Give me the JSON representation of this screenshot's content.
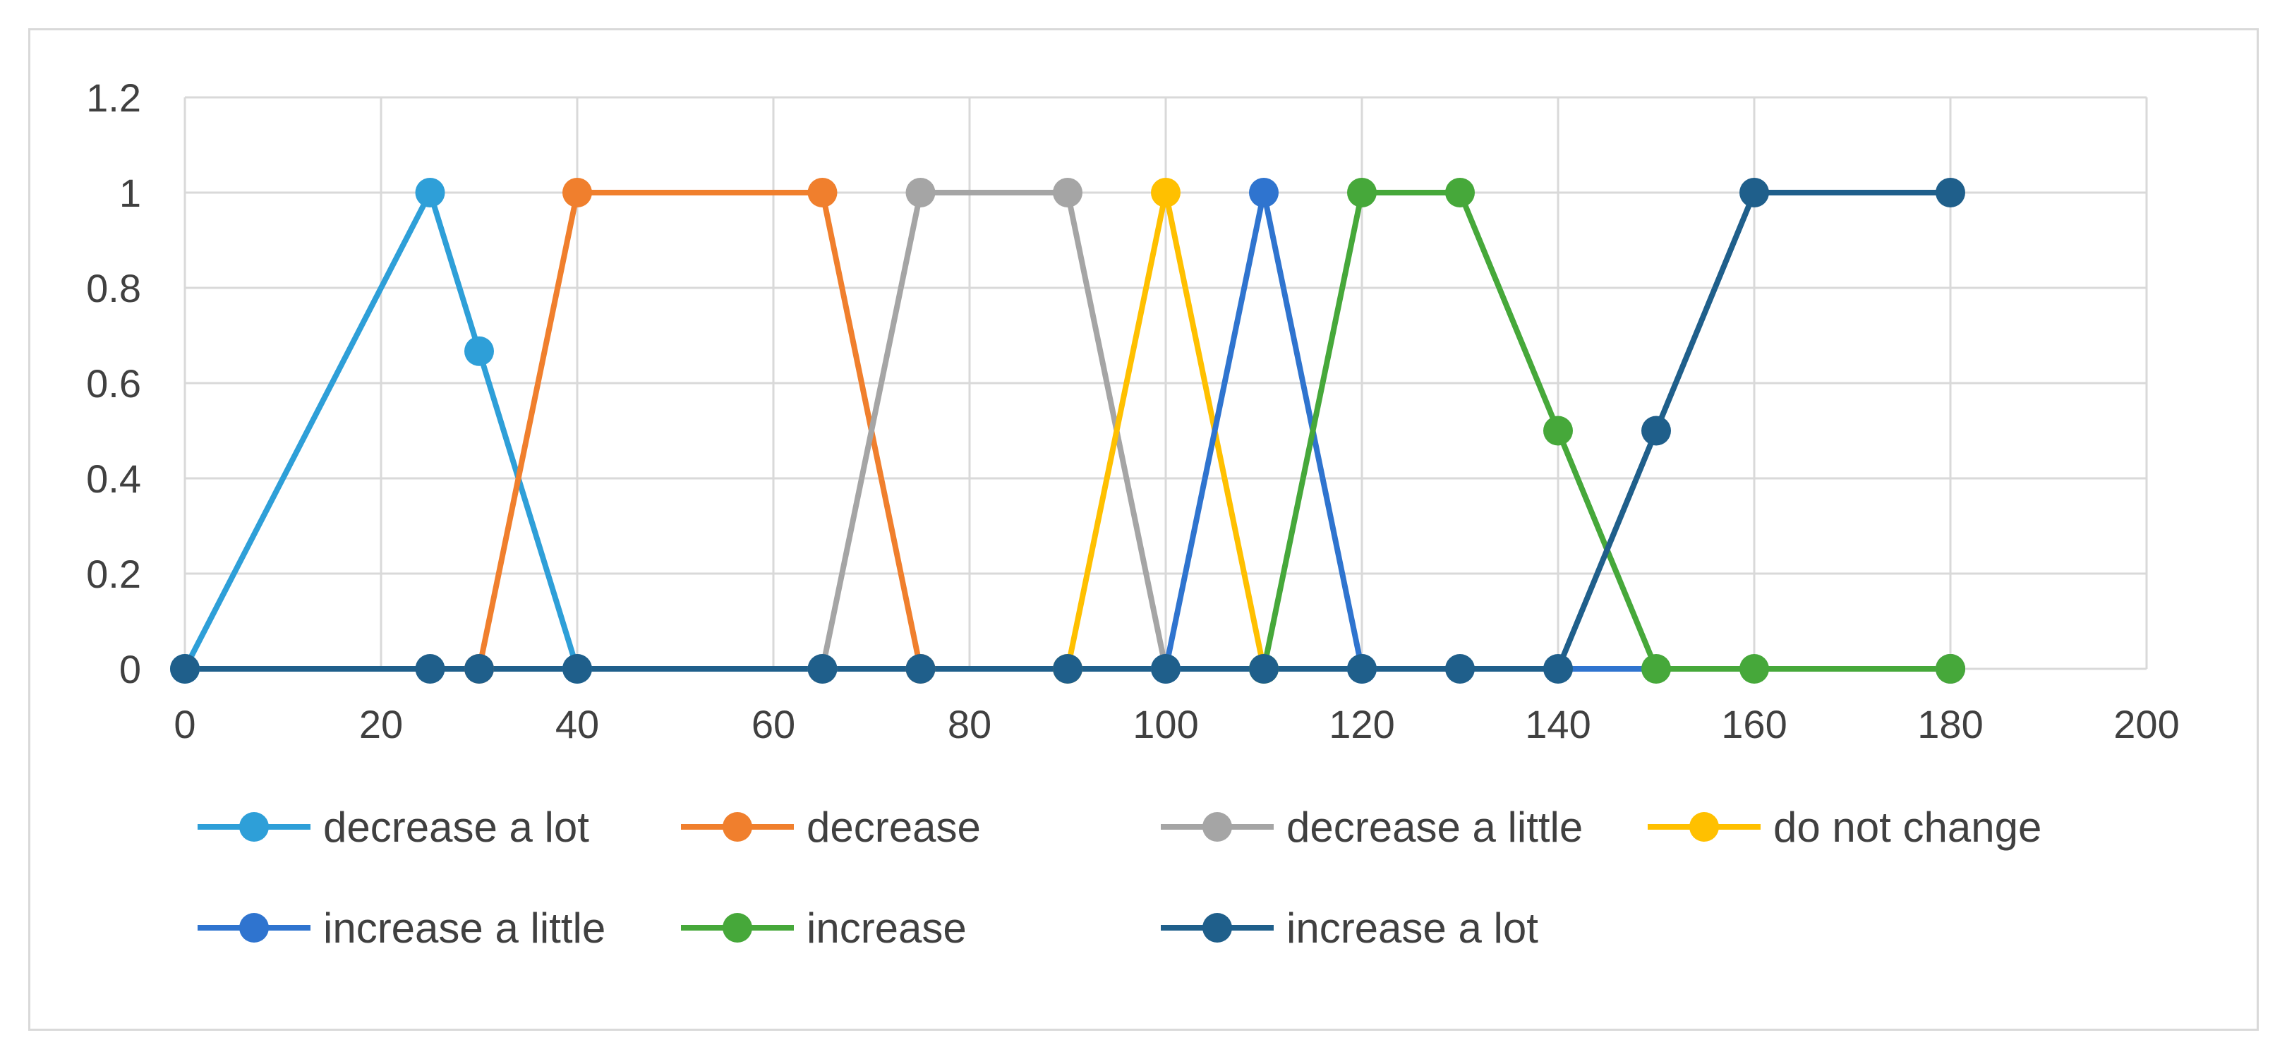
{
  "chart_data": {
    "type": "line",
    "title": "",
    "xlabel": "",
    "ylabel": "",
    "xlim": [
      0,
      200
    ],
    "ylim": [
      0,
      1.2
    ],
    "x_ticks": [
      0,
      20,
      40,
      60,
      80,
      100,
      120,
      140,
      160,
      180,
      200
    ],
    "y_ticks": [
      0,
      0.2,
      0.4,
      0.6,
      0.8,
      1,
      1.2
    ],
    "x_tick_labels": [
      "0",
      "20",
      "40",
      "60",
      "80",
      "100",
      "120",
      "140",
      "160",
      "180",
      "200"
    ],
    "y_tick_labels": [
      "0",
      "0.2",
      "0.4",
      "0.6",
      "0.8",
      "1",
      "1.2"
    ],
    "grid": true,
    "legend_position": "bottom",
    "series": [
      {
        "name": "decrease a lot",
        "color": "#2E9FD8",
        "x": [
          0,
          25,
          30,
          40,
          180
        ],
        "y": [
          0,
          1,
          0.667,
          0,
          0
        ]
      },
      {
        "name": "decrease",
        "color": "#F07F2D",
        "x": [
          30,
          40,
          65,
          75,
          180
        ],
        "y": [
          0,
          1,
          1,
          0,
          0
        ]
      },
      {
        "name": "decrease a little",
        "color": "#A5A5A5",
        "x": [
          65,
          75,
          90,
          100,
          180
        ],
        "y": [
          0,
          1,
          1,
          0,
          0
        ]
      },
      {
        "name": "do not change",
        "color": "#FFC000",
        "x": [
          90,
          100,
          110,
          180
        ],
        "y": [
          0,
          1,
          0,
          0
        ]
      },
      {
        "name": "increase a little",
        "color": "#2F74CF",
        "x": [
          100,
          110,
          120,
          180
        ],
        "y": [
          0,
          1,
          0,
          0
        ]
      },
      {
        "name": "increase",
        "color": "#46A83A",
        "x": [
          110,
          120,
          130,
          140,
          150,
          160,
          180
        ],
        "y": [
          0,
          1,
          1,
          0.5,
          0,
          0,
          0
        ]
      },
      {
        "name": "increase a lot",
        "color": "#1F5F8B",
        "x": [
          0,
          25,
          30,
          40,
          65,
          75,
          90,
          100,
          110,
          120,
          130,
          140,
          150,
          160,
          180
        ],
        "y": [
          0,
          0,
          0,
          0,
          0,
          0,
          0,
          0,
          0,
          0,
          0,
          0,
          0.5,
          1,
          1
        ]
      }
    ]
  }
}
